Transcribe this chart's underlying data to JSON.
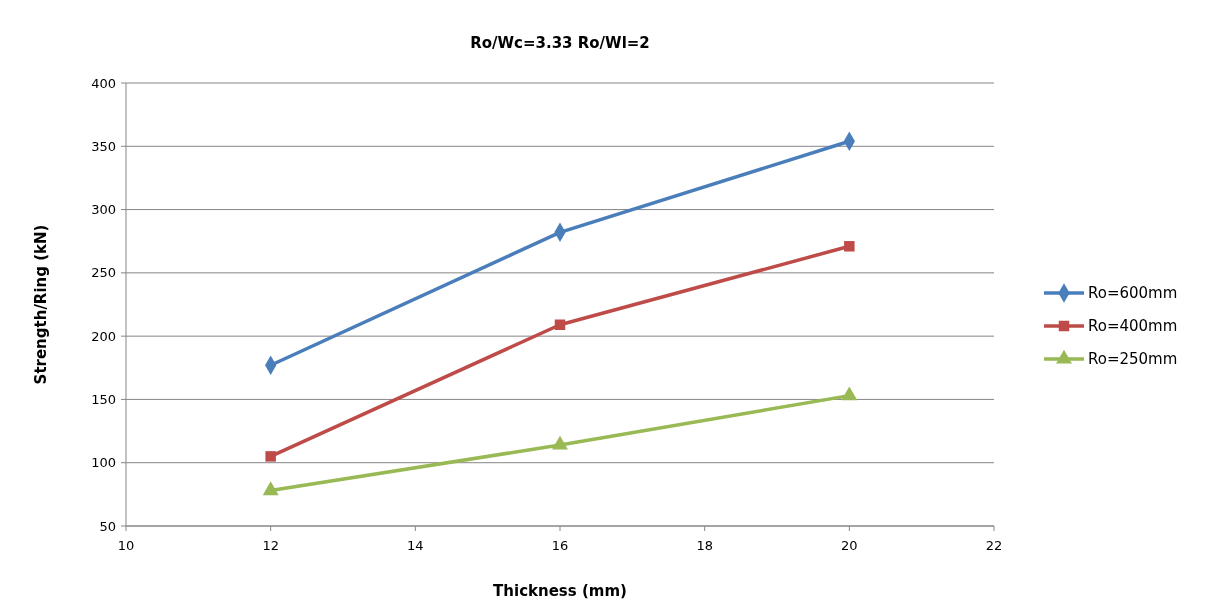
{
  "chart_data": {
    "type": "line",
    "title": "Ro/Wc=3.33  Ro/Wl=2",
    "xlabel": "Thickness (mm)",
    "ylabel": "Strength/Ring (kN)",
    "x": [
      12,
      16,
      20
    ],
    "series": [
      {
        "name": "Ro=600mm",
        "color": "#4a7ebb",
        "marker": "diamond",
        "values": [
          177,
          282,
          354
        ]
      },
      {
        "name": "Ro=400mm",
        "color": "#be4b48",
        "marker": "square",
        "values": [
          105,
          209,
          271
        ]
      },
      {
        "name": "Ro=250mm",
        "color": "#98b954",
        "marker": "triangle",
        "values": [
          78,
          114,
          153
        ]
      }
    ],
    "xlim": [
      10,
      22
    ],
    "xticks": [
      10,
      12,
      14,
      16,
      18,
      20,
      22
    ],
    "ylim": [
      50,
      400
    ],
    "yticks": [
      50,
      100,
      150,
      200,
      250,
      300,
      350,
      400
    ],
    "grid": "y",
    "legend": "right",
    "line_style": "solid"
  }
}
